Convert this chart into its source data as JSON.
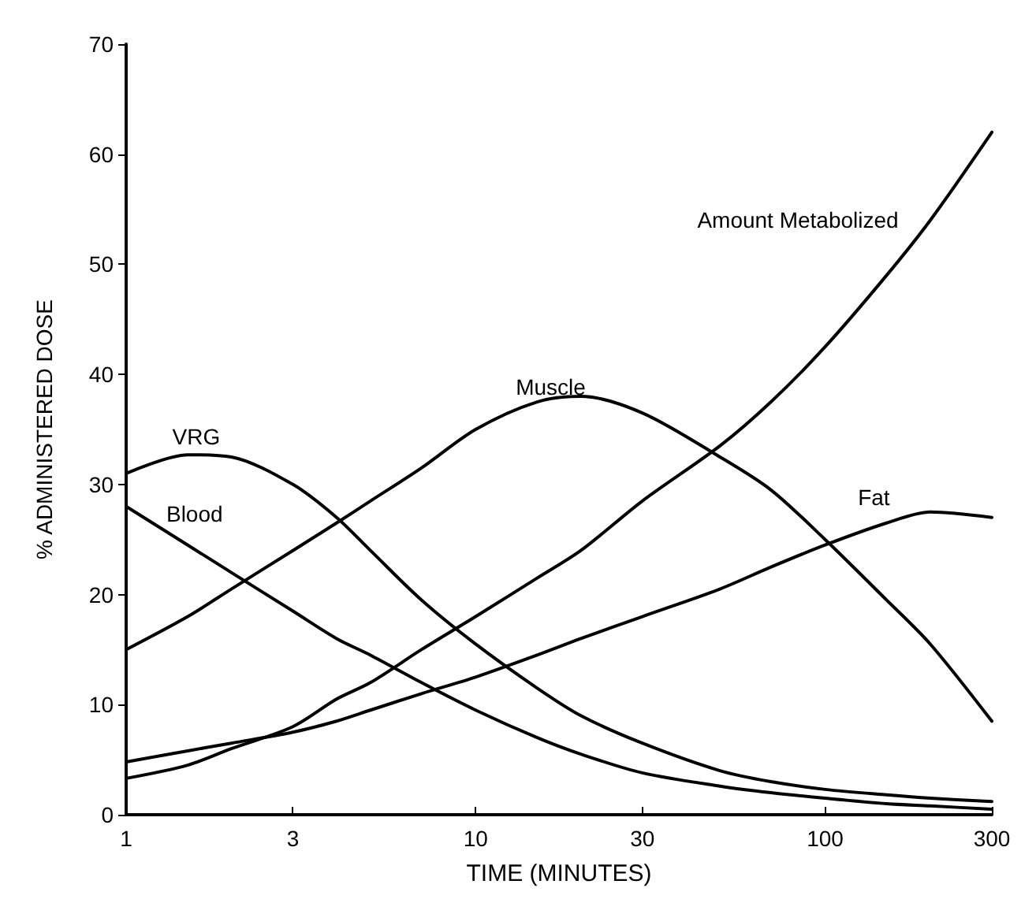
{
  "chart_data": {
    "type": "line",
    "xlabel": "TIME (MINUTES)",
    "ylabel": "% ADMINISTERED DOSE",
    "log": "x",
    "xlim": [
      1,
      300
    ],
    "xticks": [
      1,
      3,
      10,
      30,
      100,
      300
    ],
    "ylim": [
      0,
      70
    ],
    "yticks": [
      0,
      10,
      20,
      30,
      40,
      50,
      60,
      70
    ],
    "grid": false,
    "legend": false,
    "marker": "none",
    "line_style": "solid",
    "x": [
      1,
      1.5,
      2,
      3,
      4,
      5,
      7,
      10,
      15,
      20,
      30,
      50,
      70,
      100,
      150,
      200,
      300
    ],
    "series": [
      {
        "color": "#000000",
        "values": [
          31,
          32.7,
          32.5,
          30,
          27,
          24,
          19.5,
          15.5,
          11.5,
          9,
          6.5,
          4,
          3,
          2.3,
          1.8,
          1.5,
          1.2
        ]
      },
      {
        "color": "#000000",
        "values": [
          28,
          24.5,
          22,
          18.5,
          16,
          14.5,
          12,
          9.5,
          7,
          5.5,
          3.8,
          2.6,
          2,
          1.5,
          1,
          0.8,
          0.5
        ]
      },
      {
        "color": "#000000",
        "values": [
          15,
          18,
          20.5,
          24,
          26.5,
          28.5,
          31.5,
          35,
          37.5,
          38,
          36.5,
          32.5,
          29.5,
          25,
          19.5,
          15.5,
          8.5
        ]
      },
      {
        "color": "#000000",
        "values": [
          3.3,
          4.5,
          6,
          8,
          10.5,
          12,
          15,
          18,
          21.5,
          24,
          28.5,
          33.5,
          37.5,
          42.5,
          49,
          54,
          62
        ]
      },
      {
        "color": "#000000",
        "values": [
          4.8,
          5.8,
          6.5,
          7.5,
          8.5,
          9.5,
          11,
          12.5,
          14.5,
          16,
          18,
          20.5,
          22.5,
          24.5,
          26.5,
          27.5,
          27
        ]
      }
    ],
    "annotations": [
      {
        "text": "VRG",
        "x": 1.3,
        "y": 32.5
      },
      {
        "text": "Blood",
        "x": 1.25,
        "y": 25.5
      },
      {
        "text": "Muscle",
        "x": 12.5,
        "y": 37
      },
      {
        "text": "Amount Metabolized",
        "x": 180,
        "y": 52.2
      },
      {
        "text": "Fat",
        "x": 170,
        "y": 27
      }
    ]
  }
}
